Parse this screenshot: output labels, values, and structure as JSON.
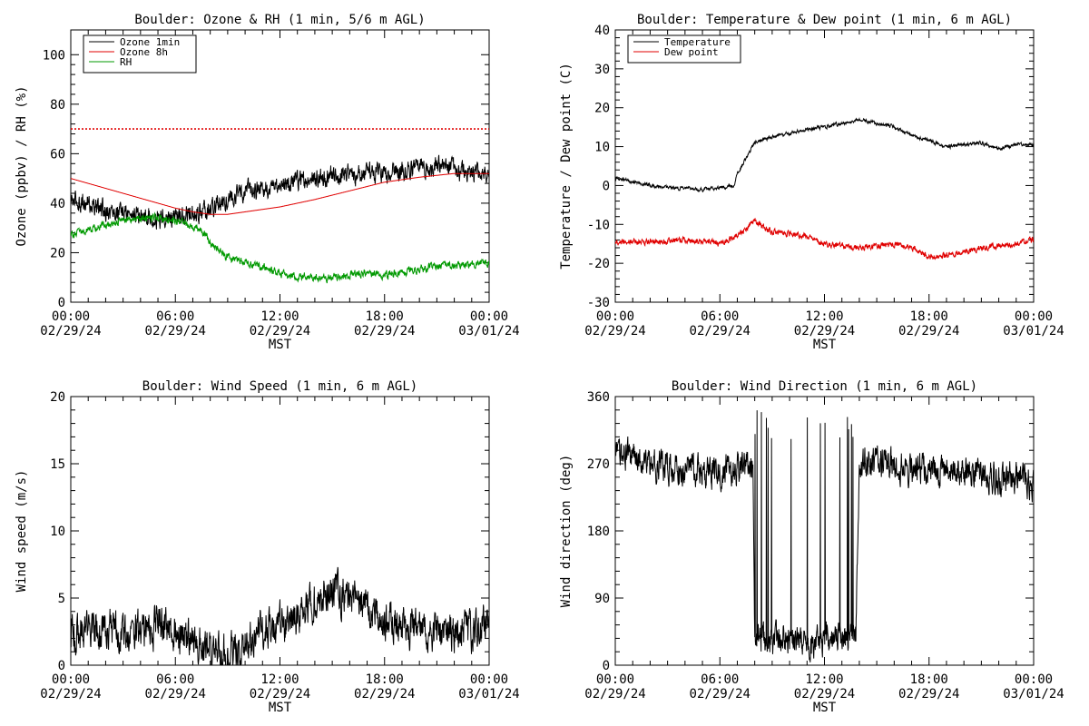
{
  "chart_data": [
    {
      "type": "line",
      "title": "Boulder: Ozone & RH (1 min, 5/6 m AGL)",
      "xlabel": "MST",
      "ylabel": "Ozone (ppbv) / RH (%)",
      "x_range": [
        "02/29/24 00:00",
        "03/01/24 00:00"
      ],
      "x_ticks": [
        {
          "time": "00:00",
          "date": "02/29/24"
        },
        {
          "time": "06:00",
          "date": "02/29/24"
        },
        {
          "time": "12:00",
          "date": "02/29/24"
        },
        {
          "time": "18:00",
          "date": "02/29/24"
        },
        {
          "time": "00:00",
          "date": "03/01/24"
        }
      ],
      "ylim": [
        0,
        110
      ],
      "y_ticks": [
        0,
        20,
        40,
        60,
        80,
        100
      ],
      "legend_position": "top-left",
      "reference_lines": [
        {
          "y": 70,
          "color": "#e00000",
          "style": "dotted"
        }
      ],
      "series": [
        {
          "name": "Ozone 1min",
          "color": "#000000",
          "noise": 3.0,
          "points": [
            [
              0,
              41
            ],
            [
              1,
              40
            ],
            [
              2,
              37
            ],
            [
              3,
              36
            ],
            [
              4,
              35
            ],
            [
              5,
              34
            ],
            [
              6,
              35
            ],
            [
              7,
              35
            ],
            [
              8,
              38
            ],
            [
              9,
              42
            ],
            [
              10,
              45
            ],
            [
              11,
              46
            ],
            [
              12,
              47
            ],
            [
              13,
              49
            ],
            [
              14,
              50
            ],
            [
              15,
              51
            ],
            [
              16,
              51
            ],
            [
              17,
              52
            ],
            [
              18,
              52
            ],
            [
              19,
              53
            ],
            [
              20,
              54
            ],
            [
              21,
              55
            ],
            [
              22,
              53
            ],
            [
              23,
              52
            ],
            [
              24,
              52
            ]
          ]
        },
        {
          "name": "Ozone 8h",
          "color": "#e00000",
          "noise": 0,
          "points": [
            [
              0,
              50
            ],
            [
              2,
              46
            ],
            [
              4,
              42
            ],
            [
              6,
              38
            ],
            [
              7,
              36.5
            ],
            [
              8,
              35.5
            ],
            [
              9,
              35.5
            ],
            [
              10,
              36.5
            ],
            [
              12,
              38.5
            ],
            [
              14,
              41.5
            ],
            [
              16,
              45
            ],
            [
              18,
              48.5
            ],
            [
              20,
              50.5
            ],
            [
              22,
              52
            ],
            [
              24,
              52
            ]
          ]
        },
        {
          "name": "RH",
          "color": "#009900",
          "noise": 1.2,
          "points": [
            [
              0,
              27
            ],
            [
              1,
              29
            ],
            [
              2,
              31
            ],
            [
              3,
              33
            ],
            [
              4,
              34
            ],
            [
              5,
              34
            ],
            [
              6,
              33
            ],
            [
              7,
              31
            ],
            [
              7.5,
              29
            ],
            [
              8,
              24
            ],
            [
              9,
              18
            ],
            [
              10,
              16
            ],
            [
              11,
              14
            ],
            [
              12,
              12
            ],
            [
              13,
              10
            ],
            [
              14,
              10
            ],
            [
              15,
              10
            ],
            [
              16,
              11
            ],
            [
              17,
              12
            ],
            [
              18,
              11
            ],
            [
              19,
              12
            ],
            [
              20,
              13
            ],
            [
              21,
              15
            ],
            [
              22,
              15
            ],
            [
              23,
              15
            ],
            [
              24,
              16
            ]
          ]
        }
      ]
    },
    {
      "type": "line",
      "title": "Boulder: Temperature & Dew point (1 min, 6 m AGL)",
      "xlabel": "MST",
      "ylabel": "Temperature / Dew point (C)",
      "x_range": [
        "02/29/24 00:00",
        "03/01/24 00:00"
      ],
      "x_ticks": [
        {
          "time": "00:00",
          "date": "02/29/24"
        },
        {
          "time": "06:00",
          "date": "02/29/24"
        },
        {
          "time": "12:00",
          "date": "02/29/24"
        },
        {
          "time": "18:00",
          "date": "02/29/24"
        },
        {
          "time": "00:00",
          "date": "03/01/24"
        }
      ],
      "ylim": [
        -30,
        40
      ],
      "y_ticks": [
        -30,
        -20,
        -10,
        0,
        10,
        20,
        30,
        40
      ],
      "legend_position": "top-left",
      "series": [
        {
          "name": "Temperature",
          "color": "#000000",
          "noise": 0.35,
          "points": [
            [
              0,
              2
            ],
            [
              1,
              1
            ],
            [
              2,
              0
            ],
            [
              3,
              -0.5
            ],
            [
              4,
              -0.8
            ],
            [
              5,
              -1
            ],
            [
              6,
              -0.5
            ],
            [
              6.8,
              0
            ],
            [
              7,
              3
            ],
            [
              7.5,
              7
            ],
            [
              8,
              11
            ],
            [
              9,
              12.5
            ],
            [
              10,
              13.5
            ],
            [
              11,
              14.5
            ],
            [
              12,
              15
            ],
            [
              13,
              16
            ],
            [
              14,
              17
            ],
            [
              15,
              16
            ],
            [
              16,
              15
            ],
            [
              17,
              13
            ],
            [
              18,
              11.5
            ],
            [
              19,
              10
            ],
            [
              20,
              10.5
            ],
            [
              21,
              11
            ],
            [
              22,
              9.5
            ],
            [
              23,
              10.5
            ],
            [
              24,
              10.5
            ]
          ]
        },
        {
          "name": "Dew point",
          "color": "#e00000",
          "noise": 0.6,
          "points": [
            [
              0,
              -14.5
            ],
            [
              2,
              -14.5
            ],
            [
              4,
              -14
            ],
            [
              6,
              -15
            ],
            [
              7,
              -13
            ],
            [
              8,
              -9
            ],
            [
              9,
              -12
            ],
            [
              10,
              -12.5
            ],
            [
              11,
              -13
            ],
            [
              12,
              -15
            ],
            [
              13,
              -15.5
            ],
            [
              14,
              -16
            ],
            [
              15,
              -15.5
            ],
            [
              16,
              -15
            ],
            [
              17,
              -16
            ],
            [
              18,
              -18.5
            ],
            [
              19,
              -18
            ],
            [
              20,
              -17
            ],
            [
              21,
              -16
            ],
            [
              22,
              -15.5
            ],
            [
              23,
              -15
            ],
            [
              24,
              -14
            ]
          ]
        }
      ]
    },
    {
      "type": "line",
      "title": "Boulder: Wind Speed (1 min, 6 m AGL)",
      "xlabel": "MST",
      "ylabel": "Wind speed (m/s)",
      "x_range": [
        "02/29/24 00:00",
        "03/01/24 00:00"
      ],
      "x_ticks": [
        {
          "time": "00:00",
          "date": "02/29/24"
        },
        {
          "time": "06:00",
          "date": "02/29/24"
        },
        {
          "time": "12:00",
          "date": "02/29/24"
        },
        {
          "time": "18:00",
          "date": "02/29/24"
        },
        {
          "time": "00:00",
          "date": "03/01/24"
        }
      ],
      "ylim": [
        0,
        20
      ],
      "y_ticks": [
        0,
        5,
        10,
        15,
        20
      ],
      "legend_position": "none",
      "series": [
        {
          "name": "",
          "color": "#000000",
          "noise": 1.1,
          "min": 0,
          "points": [
            [
              0,
              2.5
            ],
            [
              2,
              2.5
            ],
            [
              4,
              2.5
            ],
            [
              5,
              3
            ],
            [
              6,
              2.5
            ],
            [
              7,
              2
            ],
            [
              8,
              1
            ],
            [
              9,
              0.8
            ],
            [
              10,
              1.8
            ],
            [
              11,
              2.5
            ],
            [
              12,
              3
            ],
            [
              13,
              3.5
            ],
            [
              14,
              5
            ],
            [
              15,
              5.5
            ],
            [
              16,
              5
            ],
            [
              17,
              4
            ],
            [
              18,
              3.5
            ],
            [
              19,
              3
            ],
            [
              20,
              3
            ],
            [
              21,
              2.5
            ],
            [
              22,
              2.5
            ],
            [
              23,
              2.5
            ],
            [
              24,
              3.5
            ]
          ]
        }
      ]
    },
    {
      "type": "line",
      "title": "Boulder: Wind Direction (1 min, 6 m AGL)",
      "xlabel": "MST",
      "ylabel": "Wind direction (deg)",
      "x_range": [
        "02/29/24 00:00",
        "03/01/24 00:00"
      ],
      "x_ticks": [
        {
          "time": "00:00",
          "date": "02/29/24"
        },
        {
          "time": "06:00",
          "date": "02/29/24"
        },
        {
          "time": "12:00",
          "date": "02/29/24"
        },
        {
          "time": "18:00",
          "date": "02/29/24"
        },
        {
          "time": "00:00",
          "date": "03/01/24"
        }
      ],
      "ylim": [
        0,
        360
      ],
      "y_ticks": [
        0,
        90,
        180,
        270,
        360
      ],
      "legend_position": "none",
      "series": [
        {
          "name": "",
          "color": "#000000",
          "noise": 16,
          "min": 0,
          "max": 360,
          "points": [
            [
              0,
              275
            ],
            [
              1,
              285
            ],
            [
              2,
              270
            ],
            [
              3,
              265
            ],
            [
              4,
              262
            ],
            [
              5,
              260
            ],
            [
              6,
              262
            ],
            [
              7,
              265
            ],
            [
              7.9,
              270
            ],
            [
              8,
              40
            ],
            [
              9,
              30
            ],
            [
              10,
              35
            ],
            [
              11,
              30
            ],
            [
              12,
              35
            ],
            [
              13,
              40
            ],
            [
              13.8,
              35
            ],
            [
              14,
              270
            ],
            [
              15,
              270
            ],
            [
              16,
              268
            ],
            [
              17,
              265
            ],
            [
              18,
              262
            ],
            [
              19,
              262
            ],
            [
              20,
              260
            ],
            [
              21,
              258
            ],
            [
              22,
              250
            ],
            [
              23,
              250
            ],
            [
              24,
              240
            ]
          ]
        }
      ]
    }
  ]
}
